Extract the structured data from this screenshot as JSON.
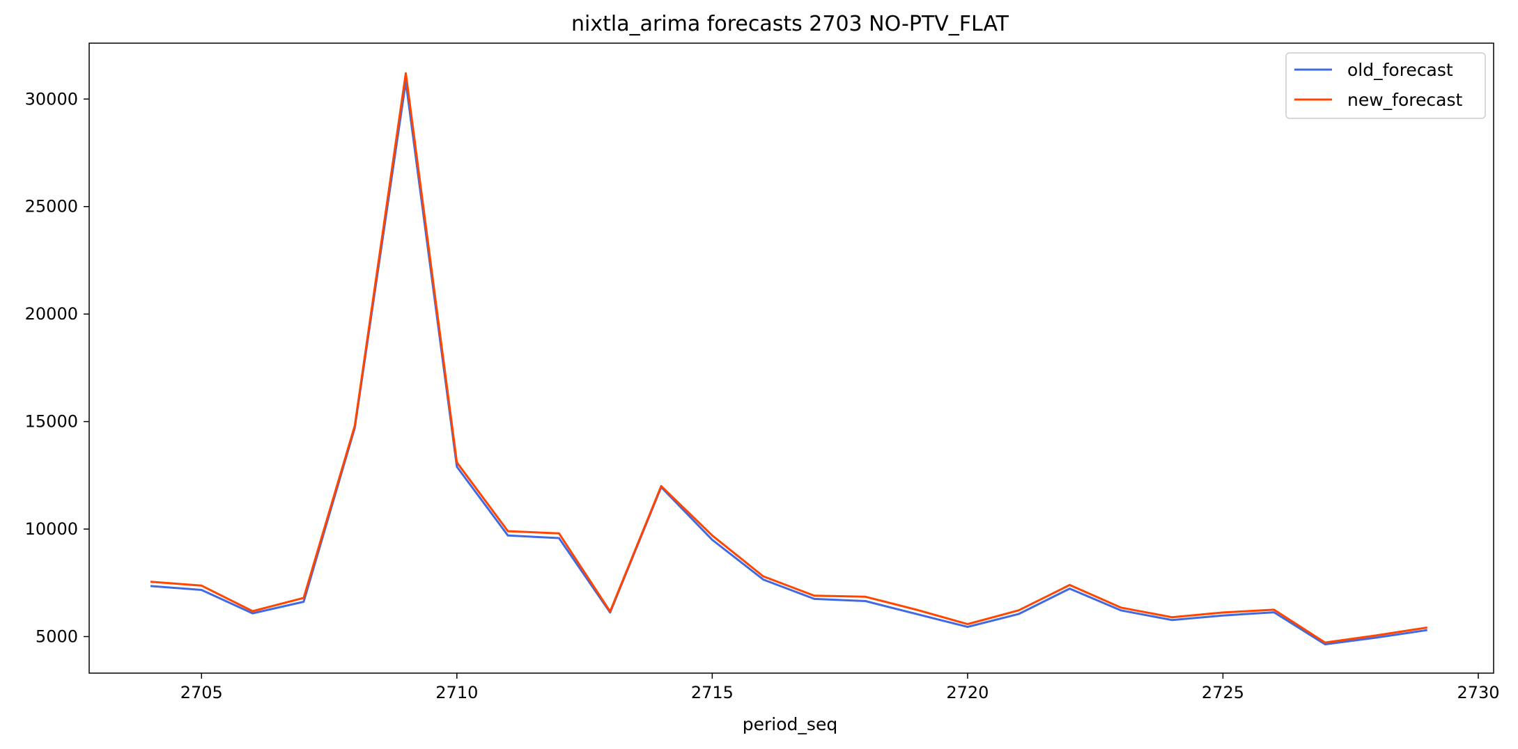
{
  "chart_data": {
    "type": "line",
    "title": "nixtla_arima forecasts 2703 NO-PTV_FLAT",
    "xlabel": "period_seq",
    "ylabel": "",
    "xlim": [
      2702.8,
      2730.3
    ],
    "ylim": [
      3300,
      32600
    ],
    "x_ticks": [
      2705,
      2710,
      2715,
      2720,
      2725,
      2730
    ],
    "y_ticks": [
      5000,
      10000,
      15000,
      20000,
      25000,
      30000
    ],
    "grid": false,
    "legend_position": "top-right",
    "x": [
      2704,
      2705,
      2706,
      2707,
      2708,
      2709,
      2710,
      2711,
      2712,
      2713,
      2714,
      2715,
      2716,
      2717,
      2718,
      2719,
      2720,
      2721,
      2722,
      2723,
      2724,
      2725,
      2726,
      2727,
      2728,
      2729
    ],
    "series": [
      {
        "name": "old_forecast",
        "color": "#4169e1",
        "values": [
          7350,
          7170,
          6080,
          6620,
          14700,
          30800,
          12900,
          9700,
          9580,
          6120,
          11950,
          9500,
          7650,
          6750,
          6650,
          6050,
          5450,
          6050,
          7230,
          6220,
          5770,
          5980,
          6130,
          4640,
          4950,
          5300
        ]
      },
      {
        "name": "new_forecast",
        "color": "#ff4500",
        "values": [
          7550,
          7370,
          6180,
          6800,
          14800,
          31200,
          13100,
          9900,
          9800,
          6170,
          12000,
          9700,
          7800,
          6900,
          6850,
          6250,
          5580,
          6220,
          7400,
          6350,
          5900,
          6120,
          6250,
          4720,
          5050,
          5420
        ]
      }
    ]
  }
}
